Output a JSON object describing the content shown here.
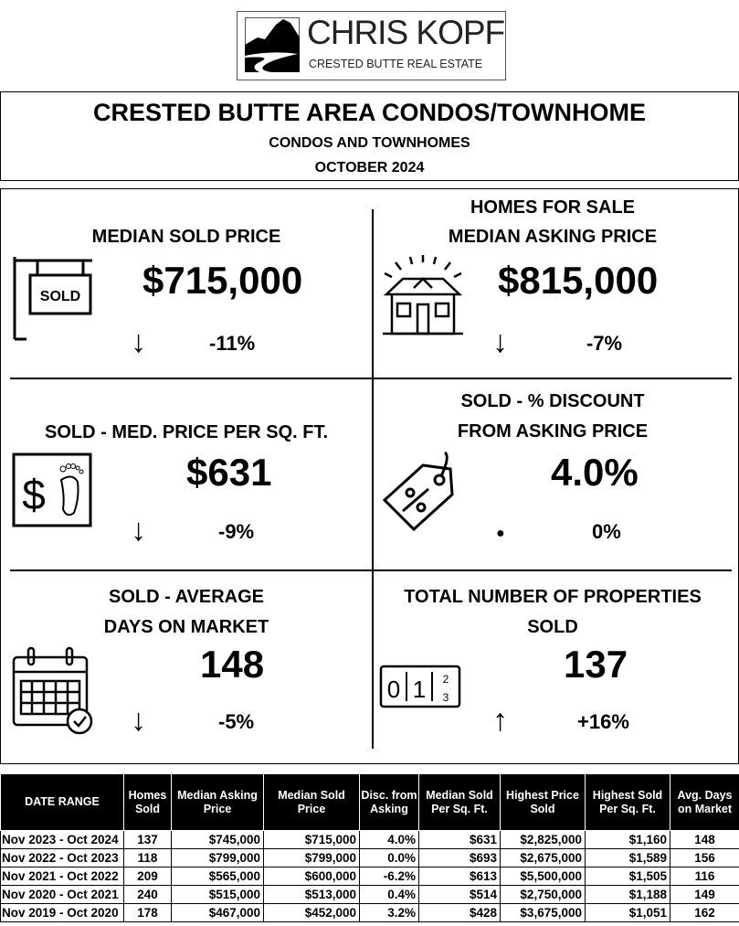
{
  "logo": {
    "name": "CHRIS KOPF",
    "tagline": "CRESTED BUTTE REAL ESTATE"
  },
  "header": {
    "title": "CRESTED BUTTE AREA CONDOS/TOWNHOME",
    "subtitle": "CONDOS AND TOWNHOMES",
    "period": "OCTOBER 2024"
  },
  "stats": [
    {
      "label1": "MEDIAN SOLD PRICE",
      "label2": "",
      "value": "$715,000",
      "change": "-11%",
      "direction": "down",
      "icon": "sold-sign-icon"
    },
    {
      "label1": "HOMES FOR SALE",
      "label2": "MEDIAN ASKING PRICE",
      "value": "$815,000",
      "change": "-7%",
      "direction": "down",
      "icon": "house-icon"
    },
    {
      "label1": "SOLD - MED. PRICE PER SQ. FT.",
      "label2": "",
      "value": "$631",
      "change": "-9%",
      "direction": "down",
      "icon": "dollar-footprint-icon"
    },
    {
      "label1": "SOLD - % DISCOUNT",
      "label2": "FROM ASKING PRICE",
      "value": "4.0%",
      "change": "0%",
      "direction": "flat",
      "icon": "percent-tag-icon"
    },
    {
      "label1": "SOLD - AVERAGE",
      "label2": "DAYS ON MARKET",
      "value": "148",
      "change": "-5%",
      "direction": "down",
      "icon": "calendar-check-icon"
    },
    {
      "label1": "TOTAL NUMBER OF PROPERTIES",
      "label2": "SOLD",
      "value": "137",
      "change": "+16%",
      "direction": "up",
      "icon": "counter-icon"
    }
  ],
  "arrows": {
    "down": "↓",
    "up": "↑",
    "flat": "●"
  },
  "table": {
    "headers": [
      "DATE RANGE",
      "Homes Sold",
      "Median Asking Price",
      "Median Sold Price",
      "Disc. from Asking",
      "Median Sold Per Sq. Ft.",
      "Highest Price Sold",
      "Highest Sold Per Sq. Ft.",
      "Avg. Days on Market"
    ],
    "rows": [
      [
        "Nov 2023 - Oct 2024",
        "137",
        "$745,000",
        "$715,000",
        "4.0%",
        "$631",
        "$2,825,000",
        "$1,160",
        "148"
      ],
      [
        "Nov 2022 - Oct 2023",
        "118",
        "$799,000",
        "$799,000",
        "0.0%",
        "$693",
        "$2,675,000",
        "$1,589",
        "156"
      ],
      [
        "Nov 2021 - Oct 2022",
        "209",
        "$565,000",
        "$600,000",
        "-6.2%",
        "$613",
        "$5,500,000",
        "$1,505",
        "116"
      ],
      [
        "Nov 2020 - Oct 2021",
        "240",
        "$515,000",
        "$513,000",
        "0.4%",
        "$514",
        "$2,750,000",
        "$1,188",
        "149"
      ],
      [
        "Nov 2019 - Oct 2020",
        "178",
        "$467,000",
        "$452,000",
        "3.2%",
        "$428",
        "$3,675,000",
        "$1,051",
        "162"
      ]
    ]
  }
}
